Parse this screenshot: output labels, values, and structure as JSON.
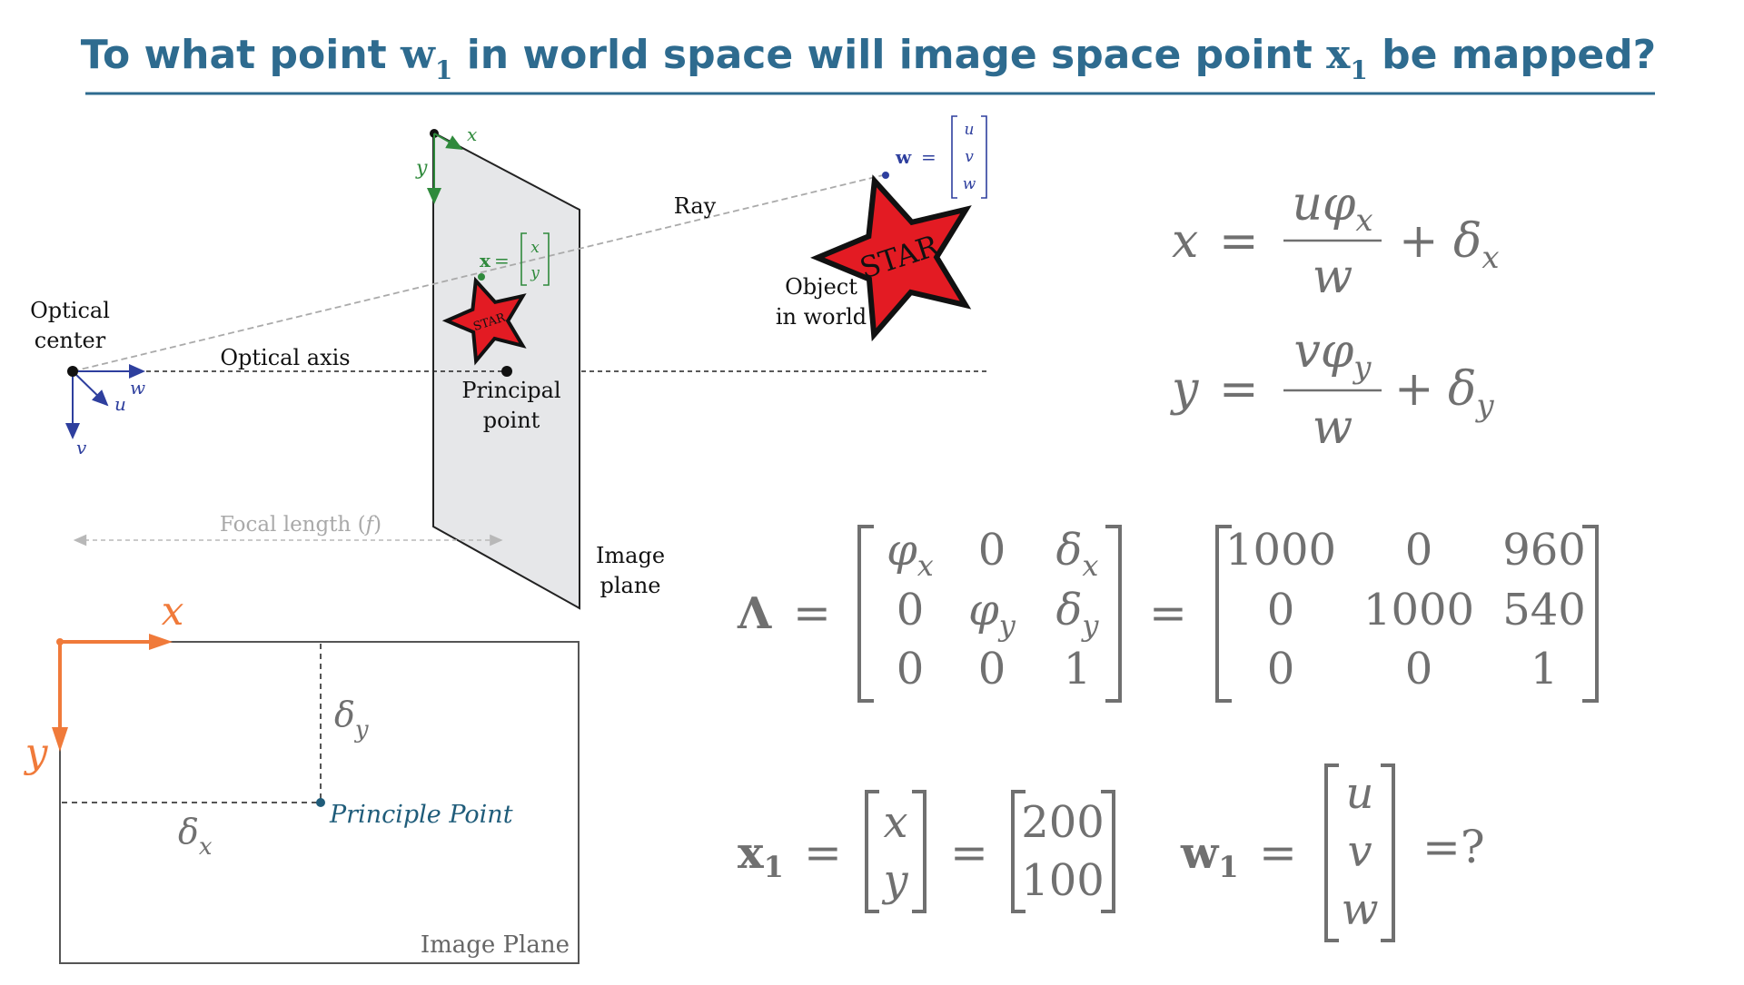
{
  "title": {
    "text_before": "To what point ",
    "w_var": "w",
    "w_sub": "1",
    "text_middle": " in world space will image space point ",
    "x_var": "x",
    "x_sub": "1",
    "text_after": " be mapped?"
  },
  "colors": {
    "title": "#2e6b8f",
    "underline": "#2e6b8f",
    "camera_axes": "#2e3f9e",
    "image_axes": "#2f8a3c",
    "star_fill": "#e31b23",
    "plane_fill": "#e6e7e9",
    "orange_axes": "#f07a3a",
    "math_gray": "#707070",
    "principal_point": "#1f5c7a"
  },
  "camera_diagram": {
    "optical_center": [
      "Optical",
      "center"
    ],
    "optical_axis": "Optical axis",
    "principal_point": [
      "Principal",
      "point"
    ],
    "ray": "Ray",
    "object_in_world": [
      "Object",
      "in world"
    ],
    "image_plane": [
      "Image",
      "plane"
    ],
    "focal_length": "Focal length",
    "focal_symbol": "f",
    "star_label": "STAR",
    "camera_axis_w": "w",
    "camera_axis_u": "u",
    "camera_axis_v": "v",
    "image_axis_x": "x",
    "image_axis_y": "y",
    "image_point_label": "x",
    "image_point_vec": [
      "x",
      "y"
    ],
    "world_point_label": "w",
    "world_point_vec": [
      "u",
      "v",
      "w"
    ]
  },
  "image_plane_diagram": {
    "axis_x": "x",
    "axis_y": "y",
    "delta_x": "δ",
    "delta_x_sub": "x",
    "delta_y": "δ",
    "delta_y_sub": "y",
    "principle_point": "Principle Point",
    "image_plane_label": "Image Plane"
  },
  "equations": {
    "eq1_lhs": "x",
    "eq1_num_a": "u",
    "eq1_num_b": "φ",
    "eq1_num_sub": "x",
    "eq1_den": "w",
    "eq1_plus": "+",
    "eq1_delta": "δ",
    "eq1_delta_sub": "x",
    "eq2_lhs": "y",
    "eq2_num_a": "v",
    "eq2_num_b": "φ",
    "eq2_num_sub": "y",
    "eq2_den": "w",
    "eq2_plus": "+",
    "eq2_delta": "δ",
    "eq2_delta_sub": "y",
    "equals": "="
  },
  "lambda_matrix": {
    "symbol": "Λ",
    "symbolic": [
      [
        "φ|x",
        "0",
        "δ|x"
      ],
      [
        "0",
        "φ|y",
        "δ|y"
      ],
      [
        "0",
        "0",
        "1"
      ]
    ],
    "numeric": [
      [
        "1000",
        "0",
        "960"
      ],
      [
        "0",
        "1000",
        "540"
      ],
      [
        "0",
        "0",
        "1"
      ]
    ]
  },
  "point_equations": {
    "x1_symbol": "x",
    "x1_sub": "1",
    "x1_vector": [
      "x",
      "y"
    ],
    "x1_values": [
      "200",
      "100"
    ],
    "w1_symbol": "w",
    "w1_sub": "1",
    "w1_vector": [
      "u",
      "v",
      "w"
    ],
    "w1_result": "=?"
  }
}
